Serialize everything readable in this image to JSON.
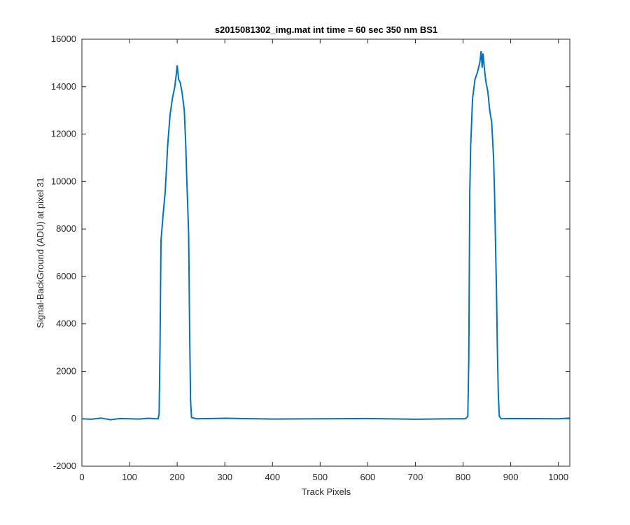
{
  "chart_data": {
    "type": "line",
    "title": "s2015081302_img.mat int time = 60 sec  350 nm BS1",
    "xlabel": "Track Pixels",
    "ylabel": "Signal-BackGround (ADU) at pixel 31",
    "xlim": [
      0,
      1024
    ],
    "ylim": [
      -2000,
      16000
    ],
    "xticks": [
      0,
      100,
      200,
      300,
      400,
      500,
      600,
      700,
      800,
      900,
      1000
    ],
    "yticks": [
      -2000,
      0,
      2000,
      4000,
      6000,
      8000,
      10000,
      12000,
      14000,
      16000
    ],
    "grid": false,
    "legend": "none",
    "series": [
      {
        "color": "#0072BD",
        "x": [
          0,
          20,
          40,
          60,
          80,
          100,
          120,
          140,
          155,
          160,
          162,
          164,
          166,
          170,
          175,
          180,
          185,
          190,
          195,
          198,
          200,
          203,
          206,
          210,
          215,
          218,
          220,
          222,
          224,
          226,
          228,
          230,
          240,
          300,
          400,
          500,
          600,
          700,
          780,
          805,
          810,
          812,
          814,
          816,
          820,
          825,
          830,
          835,
          838,
          840,
          842,
          845,
          848,
          852,
          856,
          860,
          864,
          866,
          868,
          870,
          872,
          874,
          876,
          880,
          900,
          1000,
          1024
        ],
        "y": [
          0,
          -20,
          30,
          -40,
          10,
          0,
          -10,
          20,
          0,
          0,
          200,
          3000,
          7500,
          8500,
          9600,
          11500,
          12800,
          13500,
          14000,
          14500,
          14900,
          14300,
          14200,
          13800,
          13000,
          11500,
          10200,
          9000,
          7800,
          4000,
          800,
          50,
          0,
          20,
          -10,
          0,
          10,
          -20,
          0,
          0,
          100,
          2500,
          9500,
          11500,
          13500,
          14300,
          14600,
          15000,
          15500,
          14800,
          15400,
          14700,
          14200,
          13800,
          13000,
          12500,
          11000,
          9500,
          7500,
          5500,
          3000,
          1000,
          100,
          0,
          10,
          0,
          30
        ]
      }
    ]
  }
}
